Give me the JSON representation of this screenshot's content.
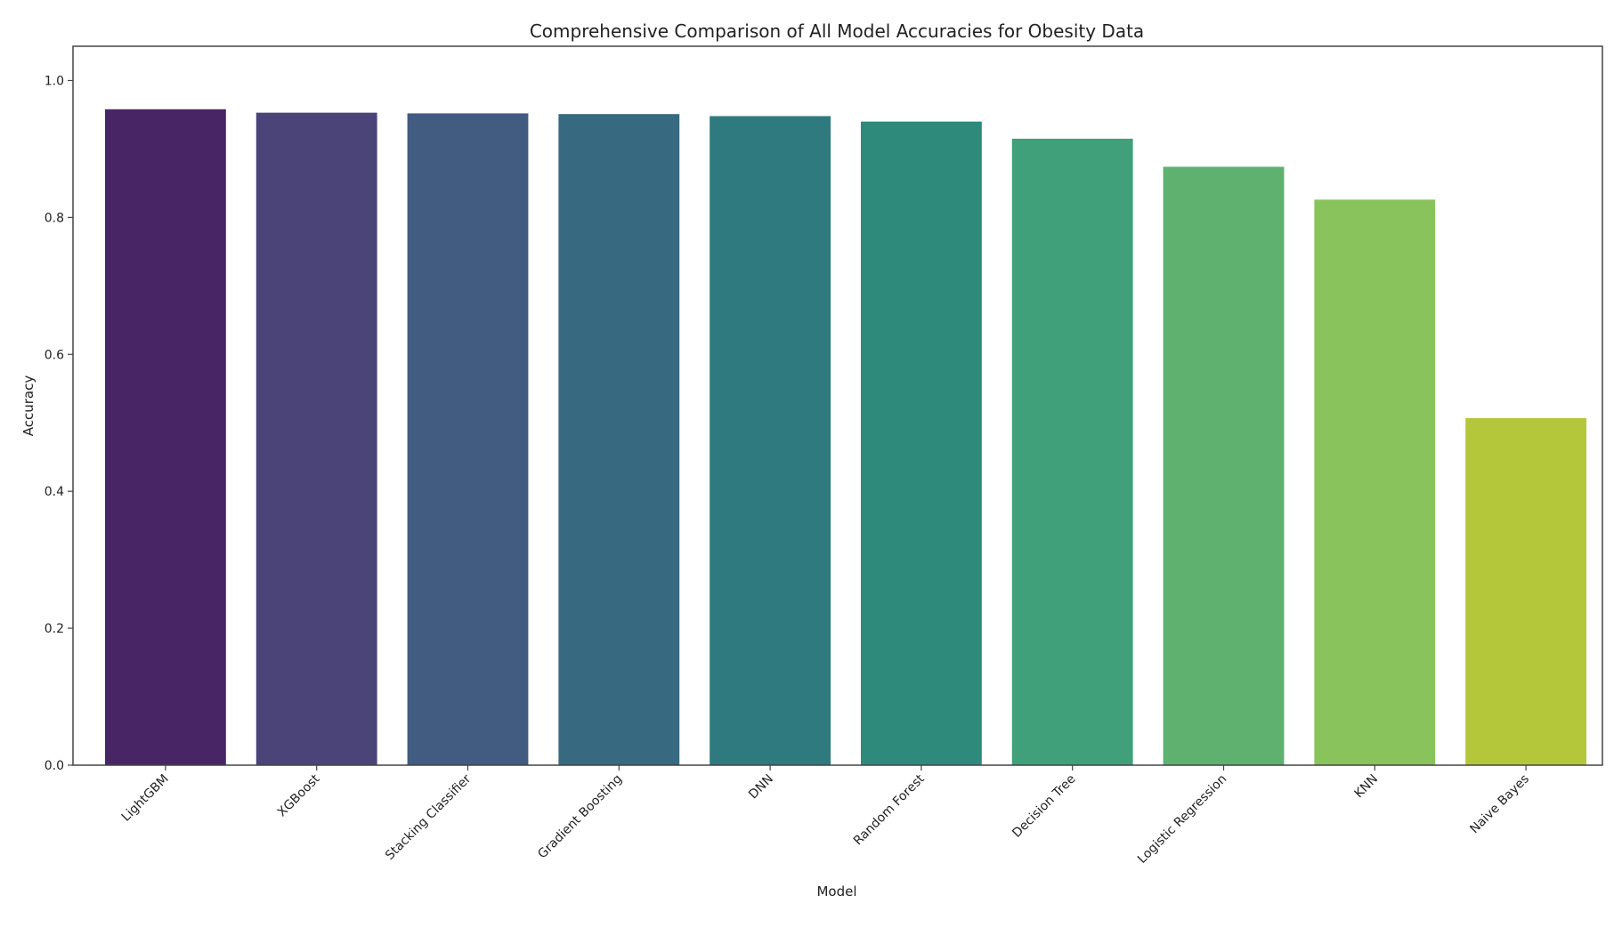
{
  "chart_data": {
    "type": "bar",
    "title": "Comprehensive Comparison of All Model Accuracies for Obesity Data",
    "xlabel": "Model",
    "ylabel": "Accuracy",
    "ylim": [
      0,
      1.05
    ],
    "yticks": [
      "0.0",
      "0.2",
      "0.4",
      "0.6",
      "0.8",
      "1.0"
    ],
    "categories": [
      "LightGBM",
      "XGBoost",
      "Stacking Classifier",
      "Gradient Boosting",
      "DNN",
      "Random Forest",
      "Decision Tree",
      "Logistic Regression",
      "KNN",
      "Naive Bayes"
    ],
    "values": [
      0.958,
      0.953,
      0.952,
      0.951,
      0.948,
      0.94,
      0.915,
      0.874,
      0.826,
      0.507
    ],
    "colors": [
      "#482666",
      "#4a4479",
      "#425b80",
      "#376a80",
      "#2f7a7e",
      "#2e8b7b",
      "#3fa07a",
      "#5eb16f",
      "#89c35c",
      "#b4c73a"
    ],
    "grid": false,
    "legend": "none"
  }
}
